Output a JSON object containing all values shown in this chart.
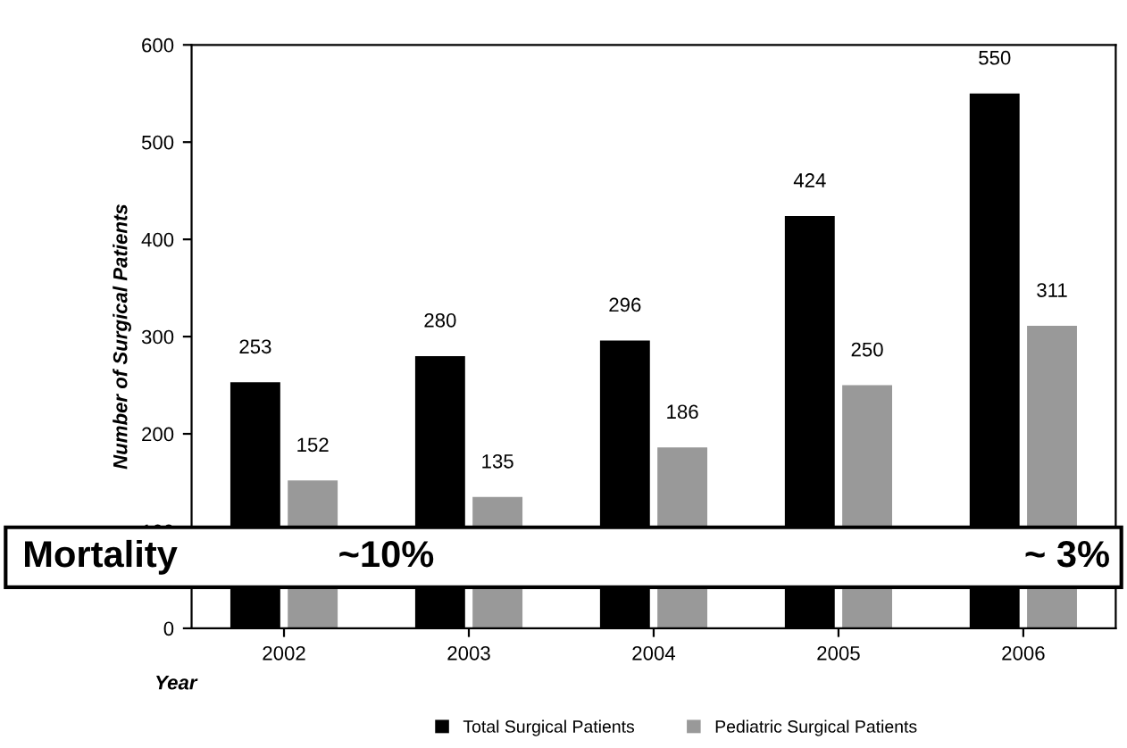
{
  "chart_data": {
    "type": "bar",
    "xlabel": "Year",
    "ylabel": "Number of Surgical Patients",
    "categories": [
      "2002",
      "2003",
      "2004",
      "2005",
      "2006"
    ],
    "series": [
      {
        "name": "Total Surgical Patients",
        "color": "#000000",
        "values": [
          253,
          280,
          296,
          424,
          550
        ]
      },
      {
        "name": "Pediatric Surgical Patients",
        "color": "#999999",
        "values": [
          152,
          135,
          186,
          250,
          311
        ]
      }
    ],
    "ylim": [
      0,
      600
    ],
    "yticks": [
      0,
      100,
      200,
      300,
      400,
      500,
      600
    ],
    "grid": false,
    "legend": "bottom",
    "data_labels": true,
    "annotations": [
      "Mortality",
      "~10%",
      "~ 3%"
    ]
  }
}
